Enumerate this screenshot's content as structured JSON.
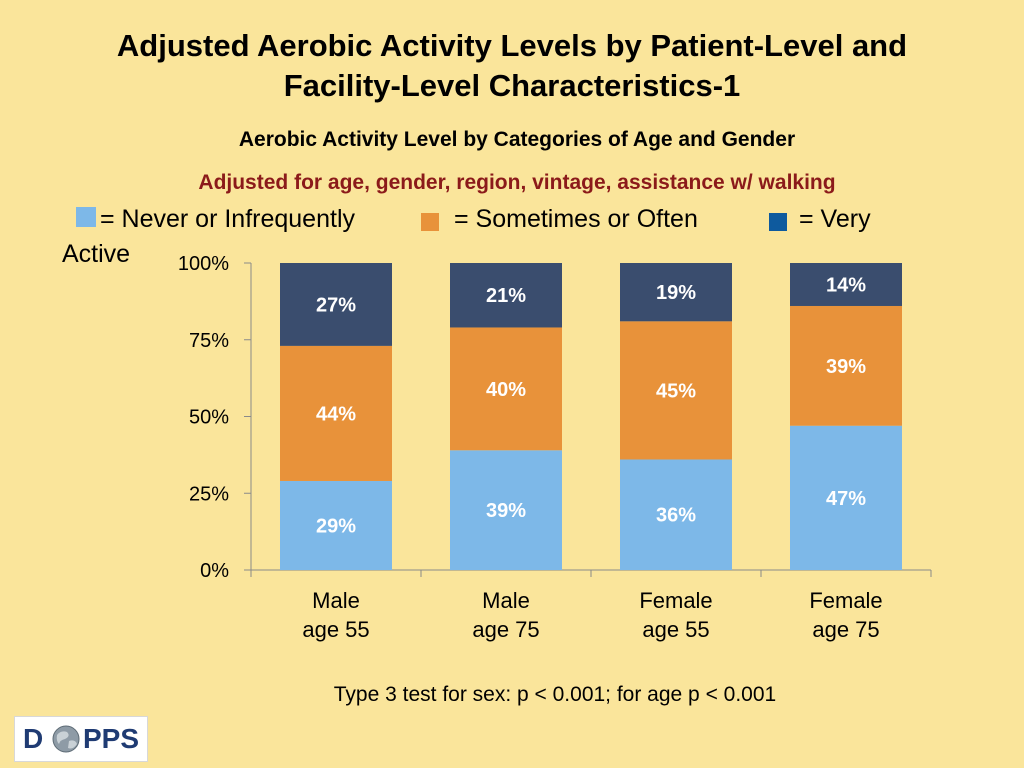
{
  "title_line1": "Adjusted Aerobic Activity Levels by Patient-Level and",
  "title_line2": "Facility-Level Characteristics-1",
  "subtitle": "Aerobic Activity Level by Categories of Age and Gender",
  "adjusted_note": "Adjusted for age, gender, region, vintage, assistance w/ walking",
  "legend": {
    "never_label": "= Never or Infrequently",
    "sometimes_label": "= Sometimes or Often",
    "very_label_1": "= Very",
    "very_label_2": "Active"
  },
  "colors": {
    "never": "#7DB8E8",
    "sometimes": "#E8923A",
    "very": "#3A4D6E",
    "legend_very": "#0E5A9E",
    "label_text": "#FFFFFF"
  },
  "footnote": "Type 3 test for sex: p < 0.001; for age p < 0.001",
  "logo": {
    "left": "D",
    "right": "PPS"
  },
  "chart_data": {
    "type": "bar",
    "stacked": true,
    "categories": [
      [
        "Male",
        "age 55"
      ],
      [
        "Male",
        "age 75"
      ],
      [
        "Female",
        "age 55"
      ],
      [
        "Female",
        "age 75"
      ]
    ],
    "series": [
      {
        "name": "Never or Infrequently",
        "values": [
          29,
          39,
          36,
          47
        ],
        "labels": [
          "29%",
          "39%",
          "36%",
          "47%"
        ]
      },
      {
        "name": "Sometimes or Often",
        "values": [
          44,
          40,
          45,
          39
        ],
        "labels": [
          "44%",
          "40%",
          "45%",
          "39%"
        ]
      },
      {
        "name": "Very Active",
        "values": [
          27,
          21,
          19,
          14
        ],
        "labels": [
          "27%",
          "21%",
          "19%",
          "14%"
        ]
      }
    ],
    "y_ticks": [
      0,
      25,
      50,
      75,
      100
    ],
    "y_tick_labels": [
      "0%",
      "25%",
      "50%",
      "75%",
      "100%"
    ],
    "ylim": [
      0,
      100
    ],
    "grid": false,
    "legend_position": "top"
  }
}
